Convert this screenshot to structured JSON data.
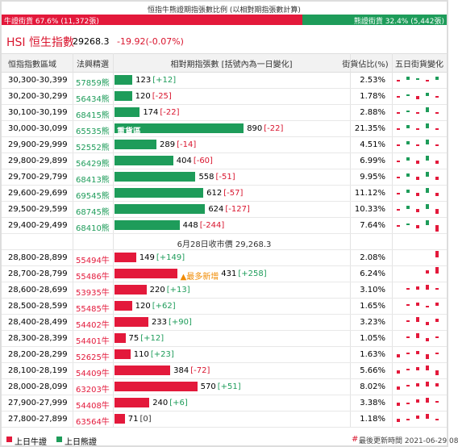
{
  "title": "恒指牛熊證期指張數比例 (以相對期指張數計算)",
  "ratio": {
    "bull": {
      "value": 67.6,
      "label": "牛證街貨 67.6% (11,372張)"
    },
    "bear": {
      "value": 32.4,
      "label": "熊證街貨 32.4% (5,442張)"
    }
  },
  "index": {
    "name": "HSI 恒生指數",
    "price": "29268.3",
    "change": "-19.92(-0.07%)"
  },
  "table": {
    "columns": [
      "恒指指數區域",
      "法興精選",
      "相對期指張數 [括號內為一日變化]",
      "街貨佔比(%)",
      "五日街貨變化"
    ],
    "bear_rows": [
      {
        "range": "30,300-30,399",
        "pick": "57859熊",
        "count": 123,
        "change": "[+12]",
        "share": "2.53%",
        "five_day": [
          -1,
          2,
          1,
          -1,
          2
        ]
      },
      {
        "range": "30,200-30,299",
        "pick": "56434熊",
        "count": 120,
        "change": "[-25]",
        "share": "1.78%",
        "five_day": [
          -1,
          1,
          -2,
          2,
          -1
        ]
      },
      {
        "range": "30,100-30,199",
        "pick": "68415熊",
        "count": 174,
        "change": "[-22]",
        "share": "2.88%",
        "five_day": [
          -1,
          1,
          -1,
          3,
          -1
        ]
      },
      {
        "range": "30,000-30,099",
        "pick": "65535熊",
        "note": "重貨區",
        "count": 890,
        "change": "[-22]",
        "share": "21.35%",
        "five_day": [
          -1,
          2,
          -1,
          3,
          -1
        ]
      },
      {
        "range": "29,900-29,999",
        "pick": "52552熊",
        "count": 289,
        "change": "[-14]",
        "share": "4.51%",
        "five_day": [
          -1,
          2,
          -1,
          3,
          -1
        ]
      },
      {
        "range": "29,800-29,899",
        "pick": "56429熊",
        "count": 404,
        "change": "[-60]",
        "share": "6.99%",
        "five_day": [
          -1,
          2,
          -2,
          3,
          -2
        ]
      },
      {
        "range": "29,700-29,799",
        "pick": "68413熊",
        "count": 558,
        "change": "[-51]",
        "share": "9.95%",
        "five_day": [
          -1,
          2,
          -2,
          3,
          -2
        ]
      },
      {
        "range": "29,600-29,699",
        "pick": "69545熊",
        "count": 612,
        "change": "[-57]",
        "share": "11.12%",
        "five_day": [
          -1,
          2,
          -2,
          3,
          -2
        ]
      },
      {
        "range": "29,500-29,599",
        "pick": "68745熊",
        "count": 624,
        "change": "[-127]",
        "share": "10.33%",
        "five_day": [
          -1,
          2,
          -2,
          3,
          -3
        ]
      },
      {
        "range": "29,400-29,499",
        "pick": "68410熊",
        "count": 448,
        "change": "[-244]",
        "share": "7.64%",
        "five_day": [
          -1,
          1,
          -2,
          3,
          -4
        ]
      }
    ],
    "separator": "6月28日收市價 29,268.3",
    "bull_rows": [
      {
        "range": "28,800-28,899",
        "pick": "55494牛",
        "count": 149,
        "change": "[+149]",
        "share": "2.08%",
        "five_day": [
          0,
          0,
          0,
          0,
          4
        ]
      },
      {
        "range": "28,700-28,799",
        "pick": "55486牛",
        "note": "▲最多新增",
        "count": 431,
        "change": "[+258]",
        "share": "6.24%",
        "five_day": [
          0,
          0,
          0,
          2,
          4
        ]
      },
      {
        "range": "28,600-28,699",
        "pick": "53935牛",
        "count": 220,
        "change": "[+13]",
        "share": "3.10%",
        "five_day": [
          0,
          1,
          2,
          3,
          1
        ]
      },
      {
        "range": "28,500-28,599",
        "pick": "55485牛",
        "count": 120,
        "change": "[+62]",
        "share": "1.65%",
        "five_day": [
          0,
          1,
          2,
          -1,
          2
        ]
      },
      {
        "range": "28,400-28,499",
        "pick": "54402牛",
        "count": 233,
        "change": "[+90]",
        "share": "3.23%",
        "five_day": [
          0,
          1,
          3,
          -2,
          2
        ]
      },
      {
        "range": "28,300-28,399",
        "pick": "54401牛",
        "count": 75,
        "change": "[+12]",
        "share": "1.05%",
        "five_day": [
          0,
          1,
          3,
          -2,
          1
        ]
      },
      {
        "range": "28,200-28,299",
        "pick": "52625牛",
        "count": 110,
        "change": "[+23]",
        "share": "1.63%",
        "five_day": [
          -2,
          1,
          2,
          -3,
          1
        ]
      },
      {
        "range": "28,100-28,199",
        "pick": "54409牛",
        "count": 384,
        "change": "[-72]",
        "share": "5.66%",
        "five_day": [
          -2,
          1,
          2,
          3,
          -3
        ]
      },
      {
        "range": "28,000-28,099",
        "pick": "63203牛",
        "count": 570,
        "change": "[+51]",
        "share": "8.02%",
        "five_day": [
          -2,
          1,
          2,
          3,
          2
        ]
      },
      {
        "range": "27,900-27,999",
        "pick": "54408牛",
        "count": 240,
        "change": "[+6]",
        "share": "3.38%",
        "five_day": [
          -2,
          -1,
          2,
          3,
          1
        ]
      },
      {
        "range": "27,800-27,899",
        "pick": "63564牛",
        "count": 71,
        "change": "[0]",
        "share": "1.18%",
        "five_day": [
          -2,
          -1,
          2,
          3,
          -1
        ]
      }
    ]
  },
  "legend": [
    "上日牛證",
    "上日熊證"
  ],
  "update_mark": "#",
  "updated": "最後更新時間 2021-06-29 08"
}
